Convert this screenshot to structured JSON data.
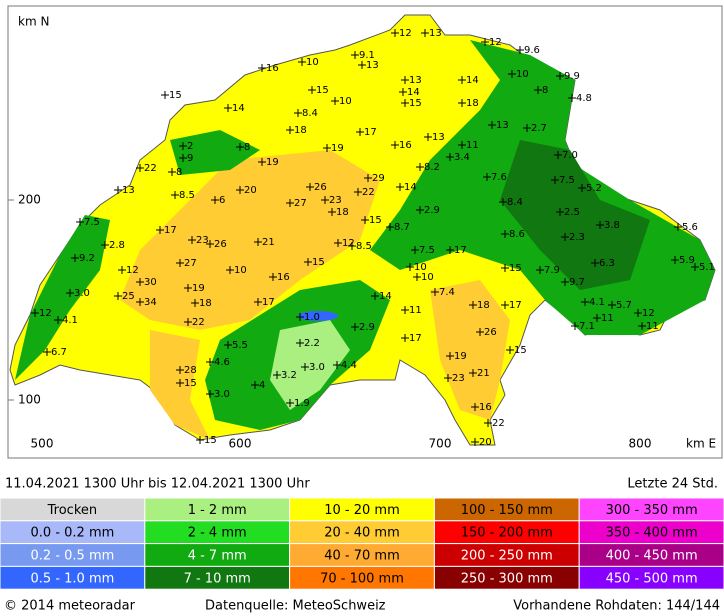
{
  "map": {
    "y_title": "km N",
    "x_title": "km E",
    "y_labels": [
      "200",
      "100"
    ],
    "x_labels": [
      "500",
      "600",
      "700",
      "800"
    ],
    "stations": [
      "12",
      "13",
      "12",
      "9.6",
      "9.1",
      "10",
      "13",
      "16",
      "9.9",
      "10",
      "13",
      "14",
      "15",
      "15",
      "14",
      "8",
      "4.8",
      "14",
      "10",
      "15",
      "18",
      "8.4",
      "18",
      "17",
      "13",
      "2.7",
      "2",
      "13",
      "8",
      "16",
      "19",
      "11",
      "9",
      "8.2",
      "3.4",
      "7.0",
      "22",
      "19",
      "8",
      "29",
      "26",
      "7.6",
      "7.5",
      "5.2",
      "13",
      "20",
      "8.5",
      "14",
      "6",
      "22",
      "27",
      "23",
      "8.4",
      "18",
      "2.9",
      "2.5",
      "7.5",
      "17",
      "15",
      "8.7",
      "3.8",
      "5.6",
      "23",
      "26",
      "21",
      "12",
      "8.5",
      "8.6",
      "2.3",
      "2.8",
      "9.2",
      "15",
      "7.5",
      "17",
      "6.3",
      "5.9",
      "5.1",
      "10",
      "27",
      "12",
      "10",
      "16",
      "15",
      "7.9",
      "9.7",
      "30",
      "3.0",
      "19",
      "10",
      "25",
      "34",
      "18",
      "17",
      "14",
      "7.4",
      "18",
      "17",
      "4.1",
      "5.7",
      "12",
      "12",
      "4.1",
      "1.0",
      "11",
      "11",
      "22",
      "7.1",
      "11",
      "2.9",
      "26",
      "17",
      "2.2",
      "5.5",
      "6.7",
      "4.6",
      "15",
      "19",
      "3.0",
      "4.4",
      "28",
      "3.2",
      "23",
      "4",
      "21",
      "15",
      "3.0",
      "1.9",
      "16",
      "22",
      "20",
      "15"
    ]
  },
  "footer": {
    "period": "11.04.2021  1300 Uhr   bis   12.04.2021  1300 Uhr",
    "window": "Letzte 24 Std.",
    "copyright": "© 2014  meteoradar",
    "source": "Datenquelle: MeteoSchweiz",
    "raw": "Vorhandene Rohdaten: 144/144"
  },
  "legend": [
    {
      "label": "Trocken",
      "color": "#d8d8d8",
      "text_color": "#000"
    },
    {
      "label": "0.0 - 0.2 mm",
      "color": "#a8b8f8",
      "text_color": "#000"
    },
    {
      "label": "0.2 - 0.5 mm",
      "color": "#7799f0",
      "text_color": "#fff"
    },
    {
      "label": "0.5 - 1.0 mm",
      "color": "#3366ff",
      "text_color": "#fff"
    },
    {
      "label": "1 - 2 mm",
      "color": "#aaf080",
      "text_color": "#000"
    },
    {
      "label": "2 - 4 mm",
      "color": "#22dd22",
      "text_color": "#000"
    },
    {
      "label": "4 - 7 mm",
      "color": "#11aa11",
      "text_color": "#fff"
    },
    {
      "label": "7 - 10 mm",
      "color": "#117711",
      "text_color": "#fff"
    },
    {
      "label": "10 - 20 mm",
      "color": "#ffff00",
      "text_color": "#000"
    },
    {
      "label": "20 - 40 mm",
      "color": "#ffcc33",
      "text_color": "#000"
    },
    {
      "label": "40 - 70 mm",
      "color": "#ffaa33",
      "text_color": "#000"
    },
    {
      "label": "70 - 100 mm",
      "color": "#ff7700",
      "text_color": "#000"
    },
    {
      "label": "100 - 150 mm",
      "color": "#cc6600",
      "text_color": "#000"
    },
    {
      "label": "150 - 200 mm",
      "color": "#ff0000",
      "text_color": "#000"
    },
    {
      "label": "200 - 250 mm",
      "color": "#cc0000",
      "text_color": "#fff"
    },
    {
      "label": "250 - 300 mm",
      "color": "#880000",
      "text_color": "#fff"
    },
    {
      "label": "300 - 350 mm",
      "color": "#ff44ff",
      "text_color": "#000"
    },
    {
      "label": "350 - 400 mm",
      "color": "#ee00cc",
      "text_color": "#000"
    },
    {
      "label": "400 - 450 mm",
      "color": "#aa0088",
      "text_color": "#fff"
    },
    {
      "label": "450 - 500 mm",
      "color": "#8800ff",
      "text_color": "#fff"
    }
  ]
}
